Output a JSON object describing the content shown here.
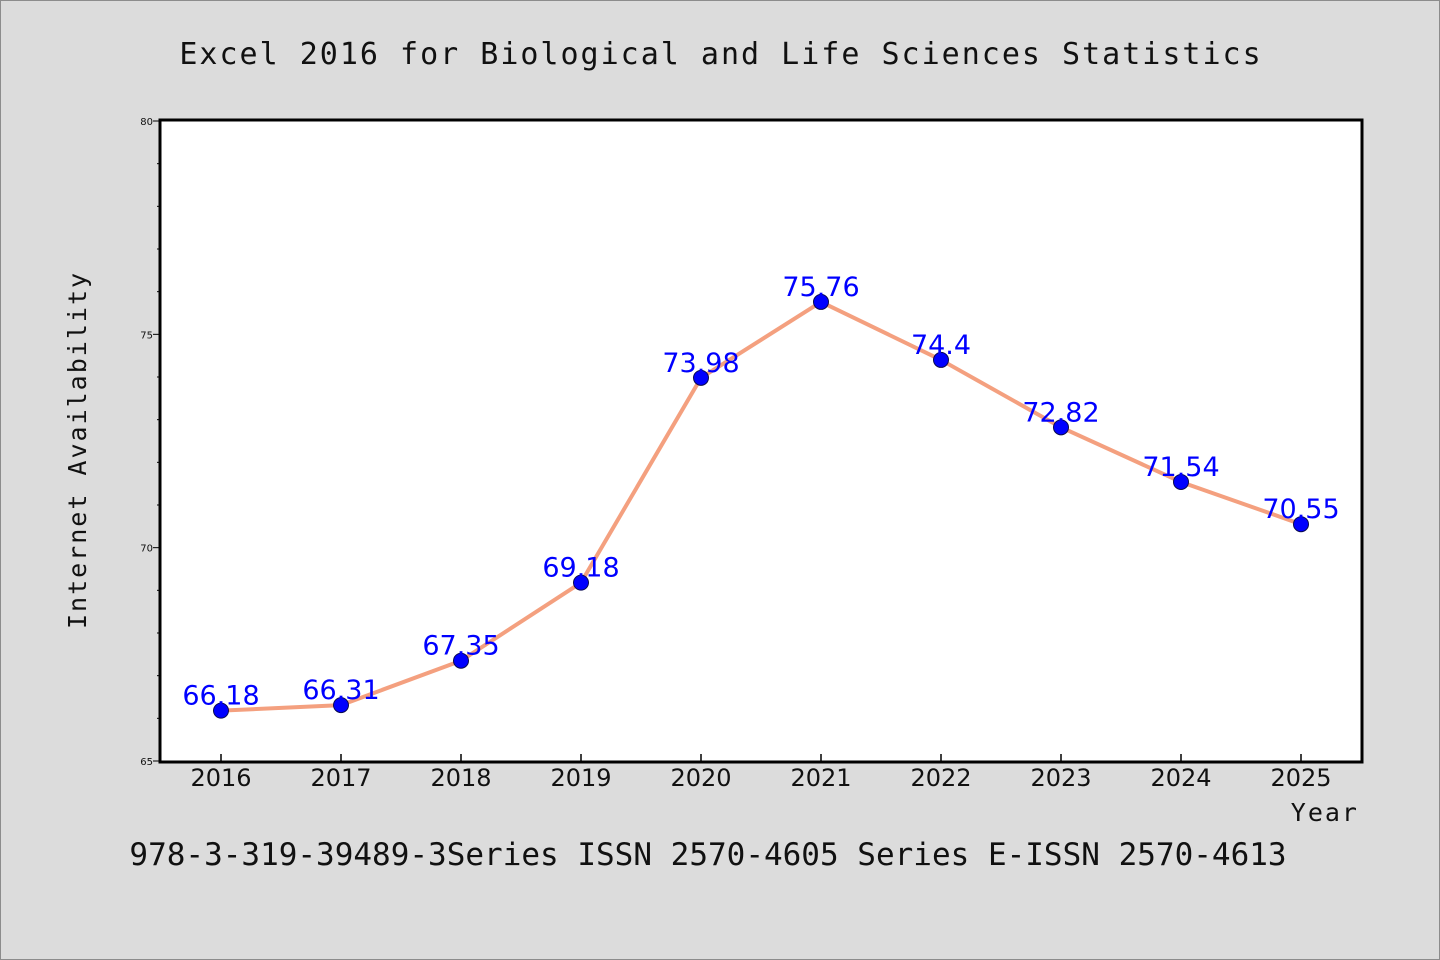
{
  "chart_data": {
    "type": "line",
    "title": "Excel 2016 for Biological and Life Sciences Statistics",
    "footer": "978-3-319-39489-3Series ISSN 2570-4605 Series E-ISSN 2570-4613",
    "xlabel": "Year",
    "ylabel": "Internet Availability",
    "categories": [
      "2016",
      "2017",
      "2018",
      "2019",
      "2020",
      "2021",
      "2022",
      "2023",
      "2024",
      "2025"
    ],
    "series": [
      {
        "values": [
          66.18,
          66.31,
          67.35,
          69.18,
          73.98,
          75.76,
          74.4,
          72.82,
          71.54,
          70.55
        ],
        "data_labels": [
          "66.18",
          "66.31",
          "67.35",
          "69.18",
          "73.98",
          "75.76",
          "74.4",
          "72.82",
          "71.54",
          "70.55"
        ]
      }
    ],
    "ylim": [
      65,
      80
    ],
    "yticks": [
      65,
      70,
      75,
      80
    ],
    "ytick_labels": [
      "65",
      "70",
      "75",
      "80"
    ],
    "y_minor_step": 1,
    "grid": false,
    "legend": "none",
    "colors": {
      "line": "#f4a07f",
      "marker": "#0000ff",
      "marker_edge": "#0a0a50",
      "data_label": "#0000ff",
      "plot_background": "#ffffff",
      "page_background": "#dcdcdc"
    }
  }
}
